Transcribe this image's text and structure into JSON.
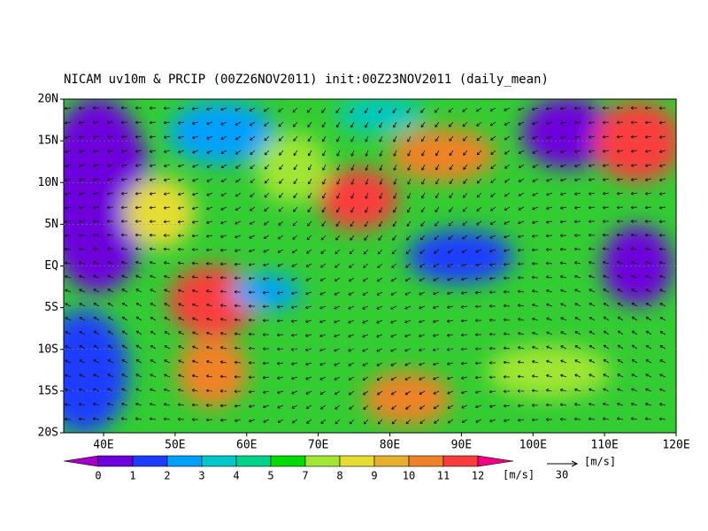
{
  "title": "NICAM uv10m & PRCIP (00Z26NOV2011) init:00Z23NOV2011 (daily_mean)",
  "lat_labels": [
    "20N",
    "15N",
    "10N",
    "5N",
    "EQ",
    "5S",
    "10S",
    "15S",
    "20S"
  ],
  "lon_labels": [
    "40E",
    "50E",
    "60E",
    "70E",
    "80E",
    "90E",
    "100E",
    "110E",
    "120E"
  ],
  "colorbar": {
    "labels": [
      0,
      1,
      2,
      3,
      4,
      5,
      7,
      8,
      9,
      10,
      11,
      12
    ],
    "colors": [
      "#a000c8",
      "#6e00dc",
      "#1e3cff",
      "#00a0ff",
      "#00c8c8",
      "#00d28c",
      "#00dc00",
      "#a0e632",
      "#e6dc32",
      "#e6af2d",
      "#f08228",
      "#fa3c3c",
      "#f00082"
    ],
    "unit": "[m/s]"
  },
  "reference_vector": {
    "label": "30",
    "unit": "[m/s]"
  }
}
